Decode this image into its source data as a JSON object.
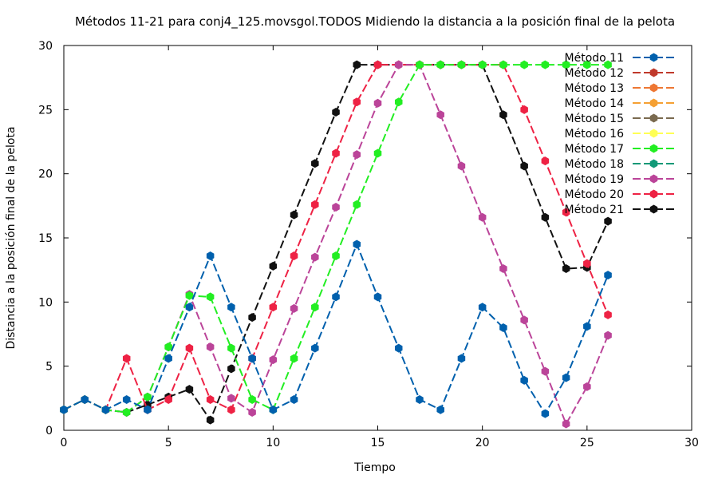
{
  "chart_data": {
    "type": "line",
    "title": "Métodos 11-21 para conj4_125.movsgol.TODOS Midiendo la distancia a la posición final de la pelota",
    "xlabel": "Tiempo",
    "ylabel": "Distancia a la posición final de la pelota",
    "xlim": [
      0,
      30
    ],
    "ylim": [
      0,
      30
    ],
    "xticks": [
      0,
      5,
      10,
      15,
      20,
      25,
      30
    ],
    "yticks": [
      0,
      5,
      10,
      15,
      20,
      25,
      30
    ],
    "grid": false,
    "legend_position": "top-right",
    "series": [
      {
        "name": "Método 11",
        "color": "#0060ad",
        "x": [
          0,
          1,
          2,
          3,
          4,
          5,
          6,
          7,
          8,
          9,
          10,
          11,
          12,
          13,
          14,
          15,
          16,
          17,
          18,
          19,
          20,
          21,
          22,
          23,
          24,
          25,
          26
        ],
        "y": [
          1.6,
          2.4,
          1.6,
          2.4,
          1.6,
          5.6,
          9.6,
          13.6,
          9.6,
          5.6,
          1.6,
          2.4,
          6.4,
          10.4,
          14.5,
          10.4,
          6.4,
          2.4,
          1.6,
          5.6,
          9.6,
          8.0,
          3.9,
          1.3,
          4.1,
          8.1,
          12.1
        ]
      },
      {
        "name": "Método 12",
        "color": "#c0392b",
        "x": [],
        "y": []
      },
      {
        "name": "Método 13",
        "color": "#ee7733",
        "x": [],
        "y": []
      },
      {
        "name": "Método 14",
        "color": "#f5a033",
        "x": [],
        "y": []
      },
      {
        "name": "Método 15",
        "color": "#7a6a4f",
        "x": [],
        "y": []
      },
      {
        "name": "Método 16",
        "color": "#ffff55",
        "x": [],
        "y": []
      },
      {
        "name": "Método 17",
        "color": "#22ee22",
        "x": [
          0,
          1,
          2,
          3,
          4,
          5,
          6,
          7,
          8,
          9,
          10,
          11,
          12,
          13,
          14,
          15,
          16,
          17,
          18,
          19,
          20,
          21,
          22,
          23,
          24,
          25,
          26
        ],
        "y": [
          1.6,
          2.4,
          1.6,
          1.4,
          2.6,
          6.5,
          10.5,
          10.4,
          6.4,
          2.4,
          1.6,
          5.6,
          9.6,
          13.6,
          17.6,
          21.6,
          25.6,
          28.5,
          28.5,
          28.5,
          28.5,
          28.5,
          28.5,
          28.5,
          28.5,
          28.5,
          28.5
        ]
      },
      {
        "name": "Método 18",
        "color": "#119977",
        "x": [],
        "y": []
      },
      {
        "name": "Método 19",
        "color": "#bb4499",
        "x": [
          0,
          1,
          2,
          3,
          4,
          5,
          6,
          7,
          8,
          9,
          10,
          11,
          12,
          13,
          14,
          15,
          16,
          17,
          18,
          19,
          20,
          21,
          22,
          23,
          24,
          25,
          26
        ],
        "y": [
          1.6,
          2.4,
          1.6,
          1.4,
          2.6,
          6.5,
          10.6,
          6.5,
          2.5,
          1.4,
          5.5,
          9.5,
          13.5,
          17.4,
          21.5,
          25.5,
          28.5,
          28.5,
          24.6,
          20.6,
          16.6,
          12.6,
          8.6,
          4.6,
          0.5,
          3.4,
          7.4
        ]
      },
      {
        "name": "Método 20",
        "color": "#ee2244",
        "x": [
          0,
          1,
          2,
          3,
          4,
          5,
          6,
          7,
          8,
          9,
          10,
          11,
          12,
          13,
          14,
          15,
          16,
          17,
          18,
          19,
          20,
          21,
          22,
          23,
          24,
          25,
          26
        ],
        "y": [
          1.6,
          2.4,
          1.6,
          5.6,
          1.6,
          2.4,
          6.4,
          2.4,
          1.6,
          5.6,
          9.6,
          13.6,
          17.6,
          21.6,
          25.6,
          28.5,
          28.5,
          28.5,
          28.5,
          28.5,
          28.5,
          28.5,
          25.0,
          21.0,
          17.0,
          13.0,
          9.0
        ]
      },
      {
        "name": "Método 21",
        "color": "#111111",
        "x": [
          0,
          1,
          2,
          3,
          4,
          5,
          6,
          7,
          8,
          9,
          10,
          11,
          12,
          13,
          14,
          15,
          16,
          17,
          18,
          19,
          20,
          21,
          22,
          23,
          24,
          25,
          26
        ],
        "y": [
          1.6,
          2.4,
          1.6,
          1.4,
          2.0,
          2.6,
          3.2,
          0.8,
          4.8,
          8.8,
          12.8,
          16.8,
          20.8,
          24.8,
          28.5,
          28.5,
          28.5,
          28.5,
          28.5,
          28.5,
          28.5,
          24.6,
          20.6,
          16.6,
          12.6,
          12.7,
          16.3
        ]
      }
    ],
    "draw_order": [
      11,
      10,
      9,
      8,
      7,
      6,
      5,
      4,
      3,
      2,
      1,
      0
    ]
  }
}
